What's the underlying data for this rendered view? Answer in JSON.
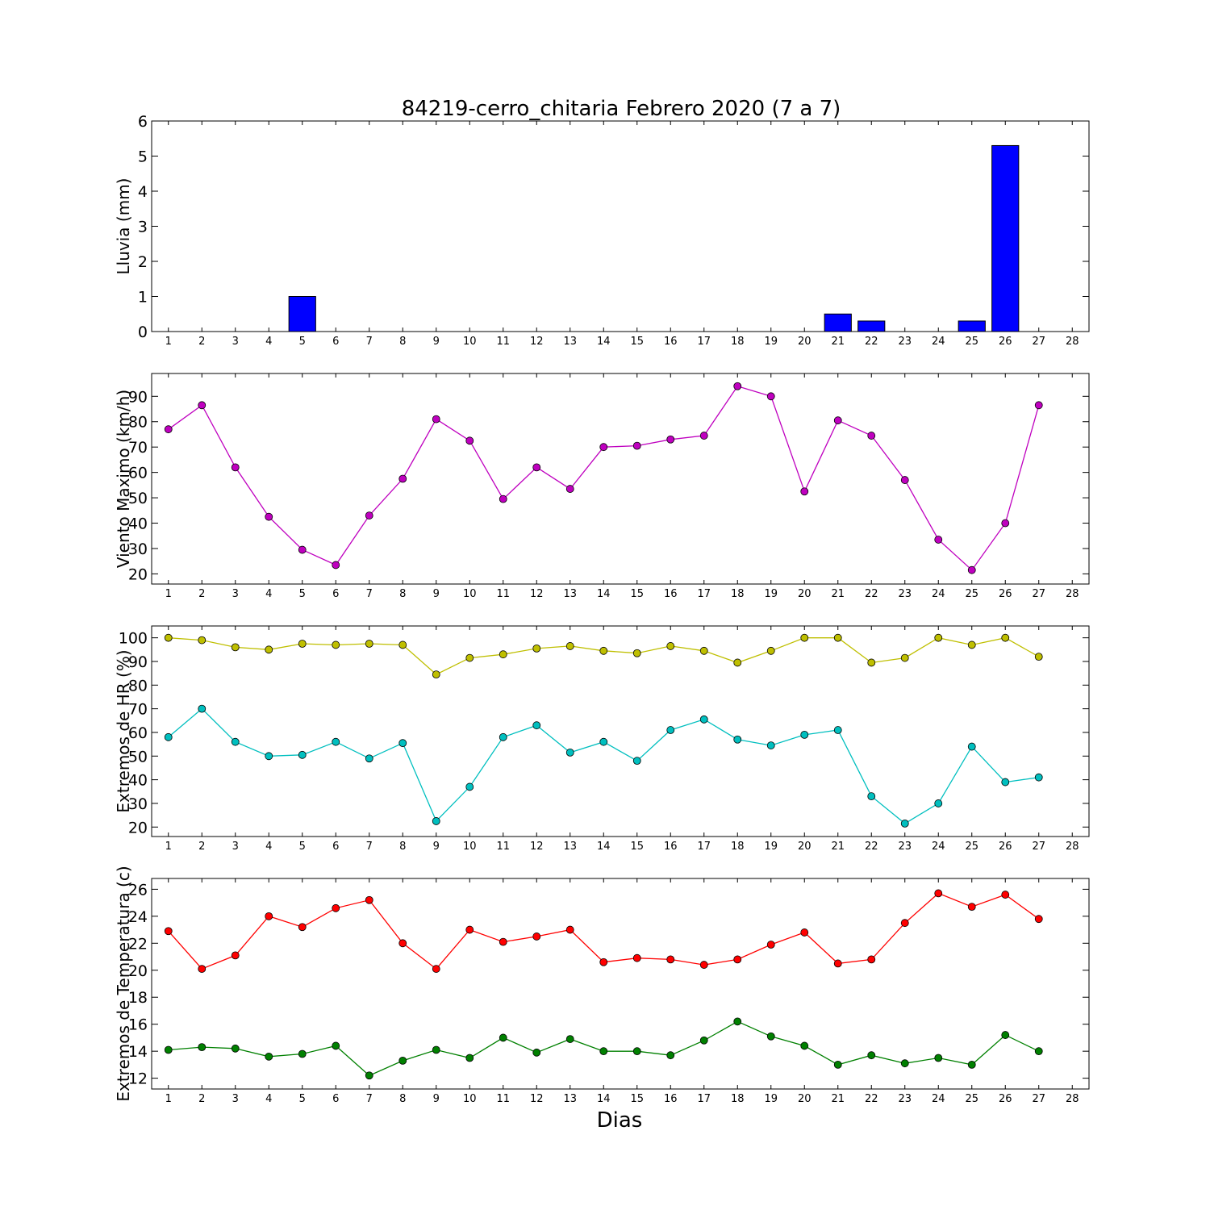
{
  "figure": {
    "title": "84219-cerro_chitaria Febrero 2020  (7 a 7)",
    "xlabel": "Dias"
  },
  "chart_data": [
    {
      "type": "bar",
      "ylabel": "Lluvia (mm)",
      "xlim": [
        0.5,
        28.5
      ],
      "ylim": [
        0,
        6
      ],
      "yticks": [
        0,
        1,
        2,
        3,
        4,
        5,
        6
      ],
      "xticks": [
        1,
        2,
        3,
        4,
        5,
        6,
        7,
        8,
        9,
        10,
        11,
        12,
        13,
        14,
        15,
        16,
        17,
        18,
        19,
        20,
        21,
        22,
        23,
        24,
        25,
        26,
        27,
        28
      ],
      "grid": false,
      "series": [
        {
          "color": "#0000ff",
          "x": [
            1,
            2,
            3,
            4,
            5,
            6,
            7,
            8,
            9,
            10,
            11,
            12,
            13,
            14,
            15,
            16,
            17,
            18,
            19,
            20,
            21,
            22,
            23,
            24,
            25,
            26,
            27
          ],
          "values": [
            0,
            0,
            0,
            0,
            1.0,
            0,
            0,
            0,
            0,
            0,
            0,
            0,
            0,
            0,
            0,
            0,
            0,
            0,
            0,
            0,
            0.5,
            0.3,
            0,
            0,
            0.3,
            5.3,
            0
          ]
        }
      ]
    },
    {
      "type": "line",
      "ylabel": "Viento Maximo (km/h)",
      "xlim": [
        0.5,
        28.5
      ],
      "ylim": [
        16,
        99
      ],
      "yticks": [
        20,
        30,
        40,
        50,
        60,
        70,
        80,
        90
      ],
      "xticks": [
        1,
        2,
        3,
        4,
        5,
        6,
        7,
        8,
        9,
        10,
        11,
        12,
        13,
        14,
        15,
        16,
        17,
        18,
        19,
        20,
        21,
        22,
        23,
        24,
        25,
        26,
        27,
        28
      ],
      "grid": false,
      "series": [
        {
          "color": "#bf00bf",
          "x": [
            1,
            2,
            3,
            4,
            5,
            6,
            7,
            8,
            9,
            10,
            11,
            12,
            13,
            14,
            15,
            16,
            17,
            18,
            19,
            20,
            21,
            22,
            23,
            24,
            25,
            26,
            27
          ],
          "values": [
            77,
            86.5,
            62,
            42.5,
            29.5,
            23.5,
            43,
            57.5,
            81,
            72.5,
            49.5,
            62,
            53.5,
            70,
            70.5,
            73,
            74.5,
            94,
            90,
            52.5,
            80.5,
            74.5,
            57,
            33.5,
            21.5,
            40,
            86.5
          ]
        }
      ]
    },
    {
      "type": "line",
      "ylabel": "Extremos de HR (%)",
      "xlim": [
        0.5,
        28.5
      ],
      "ylim": [
        16,
        105
      ],
      "yticks": [
        20,
        30,
        40,
        50,
        60,
        70,
        80,
        90,
        100
      ],
      "xticks": [
        1,
        2,
        3,
        4,
        5,
        6,
        7,
        8,
        9,
        10,
        11,
        12,
        13,
        14,
        15,
        16,
        17,
        18,
        19,
        20,
        21,
        22,
        23,
        24,
        25,
        26,
        27,
        28
      ],
      "grid": false,
      "series": [
        {
          "color": "#bfbf00",
          "x": [
            1,
            2,
            3,
            4,
            5,
            6,
            7,
            8,
            9,
            10,
            11,
            12,
            13,
            14,
            15,
            16,
            17,
            18,
            19,
            20,
            21,
            22,
            23,
            24,
            25,
            26,
            27
          ],
          "values": [
            100,
            99,
            96,
            95,
            97.5,
            97,
            97.5,
            97,
            84.5,
            91.5,
            93,
            95.5,
            96.5,
            94.5,
            93.5,
            96.5,
            94.5,
            89.5,
            94.5,
            100,
            100,
            89.5,
            91.5,
            100,
            97,
            100,
            92
          ]
        },
        {
          "color": "#00bfbf",
          "x": [
            1,
            2,
            3,
            4,
            5,
            6,
            7,
            8,
            9,
            10,
            11,
            12,
            13,
            14,
            15,
            16,
            17,
            18,
            19,
            20,
            21,
            22,
            23,
            24,
            25,
            26,
            27
          ],
          "values": [
            58,
            70,
            56,
            50,
            50.5,
            56,
            49,
            55.5,
            22.5,
            37,
            58,
            63,
            51.5,
            56,
            48,
            61,
            65.5,
            57,
            54.5,
            59,
            61,
            33,
            21.5,
            30,
            54,
            39,
            41
          ]
        }
      ]
    },
    {
      "type": "line",
      "ylabel": "Extremos de Temperatura (c)",
      "xlim": [
        0.5,
        28.5
      ],
      "ylim": [
        11.2,
        26.8
      ],
      "yticks": [
        12,
        14,
        16,
        18,
        20,
        22,
        24,
        26
      ],
      "xticks": [
        1,
        2,
        3,
        4,
        5,
        6,
        7,
        8,
        9,
        10,
        11,
        12,
        13,
        14,
        15,
        16,
        17,
        18,
        19,
        20,
        21,
        22,
        23,
        24,
        25,
        26,
        27,
        28
      ],
      "grid": false,
      "series": [
        {
          "color": "#ff0000",
          "x": [
            1,
            2,
            3,
            4,
            5,
            6,
            7,
            8,
            9,
            10,
            11,
            12,
            13,
            14,
            15,
            16,
            17,
            18,
            19,
            20,
            21,
            22,
            23,
            24,
            25,
            26,
            27
          ],
          "values": [
            22.9,
            20.1,
            21.1,
            24.0,
            23.2,
            24.6,
            25.2,
            22.0,
            20.1,
            23.0,
            22.1,
            22.5,
            23.0,
            20.6,
            20.9,
            20.8,
            20.4,
            20.8,
            21.9,
            22.8,
            20.5,
            20.8,
            23.5,
            25.7,
            24.7,
            25.6,
            23.8
          ]
        },
        {
          "color": "#008000",
          "x": [
            1,
            2,
            3,
            4,
            5,
            6,
            7,
            8,
            9,
            10,
            11,
            12,
            13,
            14,
            15,
            16,
            17,
            18,
            19,
            20,
            21,
            22,
            23,
            24,
            25,
            26,
            27
          ],
          "values": [
            14.1,
            14.3,
            14.2,
            13.6,
            13.8,
            14.4,
            12.2,
            13.3,
            14.1,
            13.5,
            15.0,
            13.9,
            14.9,
            14.0,
            14.0,
            13.7,
            14.8,
            16.2,
            15.1,
            14.4,
            13.0,
            13.7,
            13.1,
            13.5,
            13.0,
            15.2,
            14.0
          ]
        }
      ]
    }
  ]
}
